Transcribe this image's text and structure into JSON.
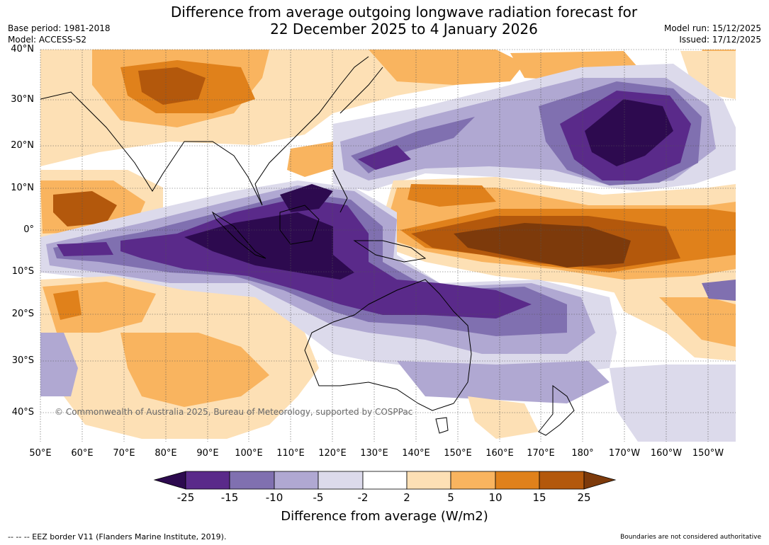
{
  "title_line1": "Difference from average outgoing longwave radiation forecast for",
  "title_line2": "22 December 2025 to 4 January 2026",
  "base_period": "Base period: 1981-2018",
  "model": "Model: ACCESS-S2",
  "model_run": "Model run: 15/12/2025",
  "issued": "Issued: 17/12/2025",
  "latitudes": [
    "40°N",
    "30°N",
    "20°N",
    "10°N",
    "0°",
    "10°S",
    "20°S",
    "30°S",
    "40°S"
  ],
  "longitudes": [
    "50°E",
    "60°E",
    "70°E",
    "80°E",
    "90°E",
    "100°E",
    "110°E",
    "120°E",
    "130°E",
    "140°E",
    "150°E",
    "160°E",
    "170°E",
    "180°",
    "170°W",
    "160°W",
    "150°W"
  ],
  "copyright": "© Commonwealth of Australia 2025, Bureau of Meteorology, supported by COSPPac",
  "colorbar": {
    "label": "Difference from average (W/m2)",
    "ticks": [
      "-25",
      "-15",
      "-10",
      "-5",
      "-2",
      "2",
      "5",
      "10",
      "15",
      "25"
    ],
    "colors": [
      "#2d0a4f",
      "#5a2a8a",
      "#8070b0",
      "#b0a8d2",
      "#dcdaeb",
      "#ffffff",
      "#fde0b5",
      "#f9b45f",
      "#e0811b",
      "#b3580c",
      "#7d3a0b"
    ]
  },
  "footer_left": "--  --  -- EEZ border V11 (Flanders Marine Institute, 2019).",
  "footer_right": "Boundaries are not considered authoritative"
}
